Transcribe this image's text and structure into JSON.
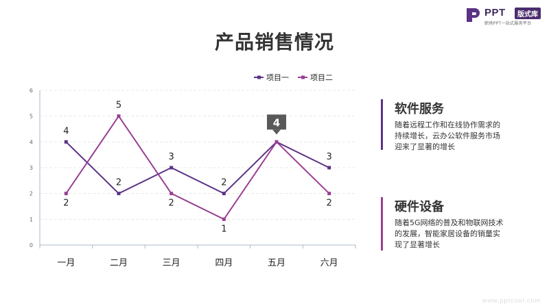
{
  "logo": {
    "brand": "PPT",
    "badge": "版式库",
    "tagline": "职场PPT一站式服务平台"
  },
  "title": "产品销售情况",
  "chart_data": {
    "type": "line",
    "categories": [
      "一月",
      "二月",
      "三月",
      "四月",
      "五月",
      "六月"
    ],
    "series": [
      {
        "name": "项目一",
        "values": [
          4,
          2,
          3,
          2,
          4,
          3
        ],
        "color": "#5b3285"
      },
      {
        "name": "项目二",
        "values": [
          2,
          5,
          2,
          1,
          4,
          2
        ],
        "color": "#9a3e93"
      }
    ],
    "ylim": [
      0,
      6
    ],
    "yticks": [
      0,
      1,
      2,
      3,
      4,
      5,
      6
    ],
    "grid": true,
    "legend": "top-right",
    "highlight": {
      "category": "五月",
      "value": 4,
      "label": "4"
    }
  },
  "cards": [
    {
      "title": "软件服务",
      "text": "随着远程工作和在线协作需求的持续增长，云办公软件服务市场迎来了显著的增长",
      "color": "#5b3285"
    },
    {
      "title": "硬件设备",
      "text": "随着5G网络的普及和物联网技术的发展，智能家居设备的销量实现了显著增长",
      "color": "#9a3e93"
    }
  ],
  "footer": "www.pptcool.com"
}
